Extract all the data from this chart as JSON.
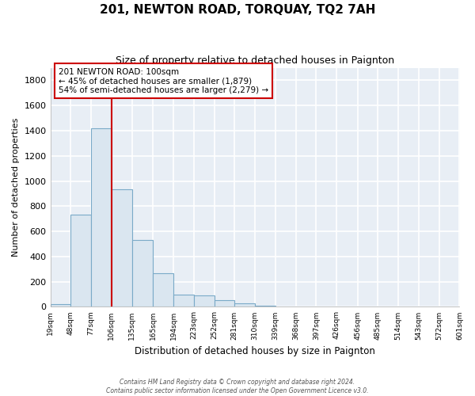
{
  "title": "201, NEWTON ROAD, TORQUAY, TQ2 7AH",
  "subtitle": "Size of property relative to detached houses in Paignton",
  "xlabel": "Distribution of detached houses by size in Paignton",
  "ylabel": "Number of detached properties",
  "bar_color": "#dae6f0",
  "bar_edge_color": "#7aaac8",
  "bin_edges": [
    19,
    48,
    77,
    106,
    135,
    165,
    194,
    223,
    252,
    281,
    310,
    339,
    368,
    397,
    426,
    456,
    485,
    514,
    543,
    572,
    601
  ],
  "bar_heights": [
    20,
    735,
    1420,
    935,
    530,
    270,
    100,
    90,
    50,
    25,
    10,
    5,
    2,
    1,
    0,
    0,
    0,
    0,
    0,
    0
  ],
  "tick_labels": [
    "19sqm",
    "48sqm",
    "77sqm",
    "106sqm",
    "135sqm",
    "165sqm",
    "194sqm",
    "223sqm",
    "252sqm",
    "281sqm",
    "310sqm",
    "339sqm",
    "368sqm",
    "397sqm",
    "426sqm",
    "456sqm",
    "485sqm",
    "514sqm",
    "543sqm",
    "572sqm",
    "601sqm"
  ],
  "ylim": [
    0,
    1900
  ],
  "yticks": [
    0,
    200,
    400,
    600,
    800,
    1000,
    1200,
    1400,
    1600,
    1800
  ],
  "property_line_x": 106,
  "annotation_title": "201 NEWTON ROAD: 100sqm",
  "annotation_line1": "← 45% of detached houses are smaller (1,879)",
  "annotation_line2": "54% of semi-detached houses are larger (2,279) →",
  "annotation_box_color": "#ffffff",
  "annotation_box_edge": "#cc0000",
  "red_line_color": "#cc0000",
  "footer1": "Contains HM Land Registry data © Crown copyright and database right 2024.",
  "footer2": "Contains public sector information licensed under the Open Government Licence v3.0.",
  "background_color": "#ffffff",
  "plot_bg_color": "#e8eef5",
  "grid_color": "#ffffff"
}
